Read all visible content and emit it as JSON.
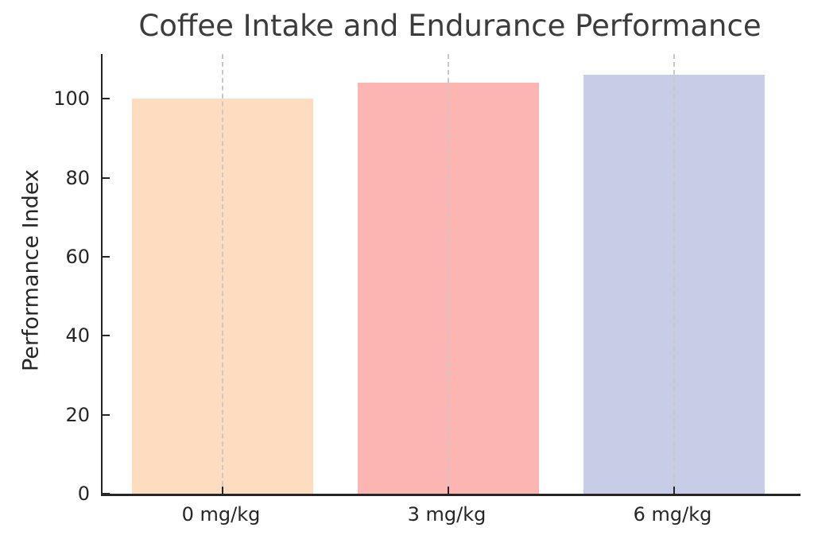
{
  "chart_data": {
    "type": "bar",
    "title": "Coffee Intake and Endurance Performance",
    "categories": [
      "0 mg/kg",
      "3 mg/kg",
      "6 mg/kg"
    ],
    "values": [
      100,
      104,
      106
    ],
    "bar_colors": [
      "#fddcc0",
      "#fcb5b0",
      "#c7cde6"
    ],
    "xlabel": "",
    "ylabel": "Performance Index",
    "yticks": [
      0,
      20,
      40,
      60,
      80,
      100
    ],
    "ylim": [
      0,
      111.3
    ],
    "grid": {
      "vertical_dashed": true,
      "horizontal": false
    },
    "legend_position": "none"
  },
  "style": {
    "background": "#ffffff",
    "axis_color": "#262626",
    "tick_text_color": "#262626",
    "title_color": "#3c3c3c",
    "grid_color": "#c9c9c9"
  }
}
